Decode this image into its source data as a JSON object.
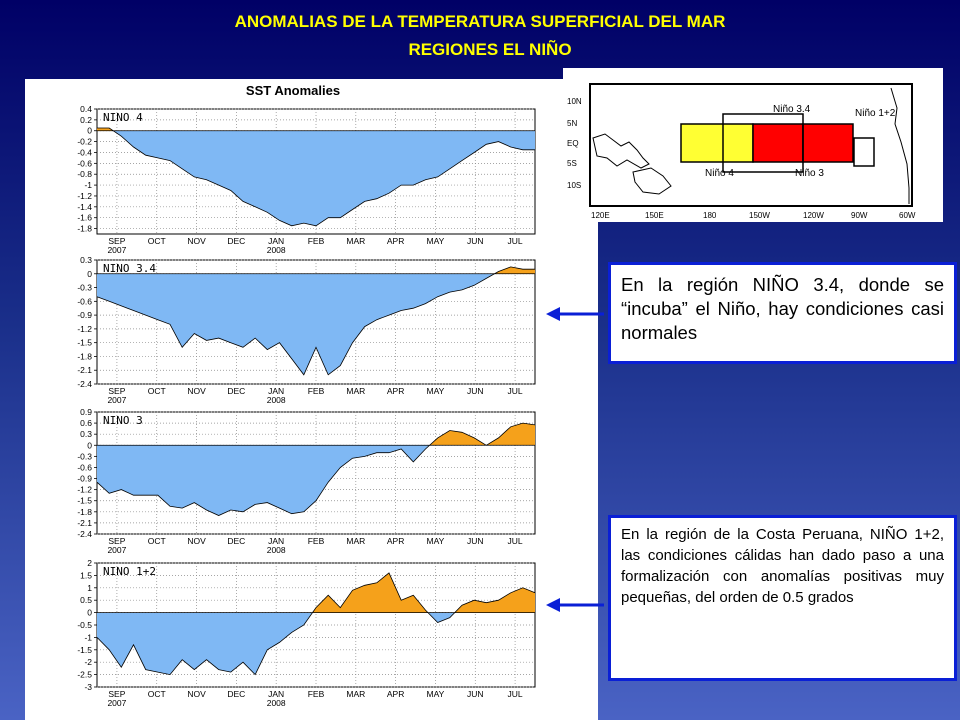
{
  "header": {
    "line1": "ANOMALIAS DE LA TEMPERATURA SUPERFICIAL DEL MAR",
    "line2": "REGIONES EL NIÑO"
  },
  "colors": {
    "negative": "#7fb8f4",
    "positive": "#f5a11b",
    "accent_text": "#ffff00",
    "box_border": "#0a1fd6",
    "map_yellow": "#ffff33",
    "map_red": "#ff0000"
  },
  "panel_title": "SST Anomalies",
  "chart_data": [
    {
      "type": "area",
      "name": "NINO 4",
      "title": "SST Anomalies",
      "x_ticks": [
        "SEP",
        "OCT",
        "NOV",
        "DEC",
        "JAN",
        "FEB",
        "MAR",
        "APR",
        "MAY",
        "JUN",
        "JUL"
      ],
      "x_year_labels": [
        "2007",
        "2008"
      ],
      "ylim": [
        -1.9,
        0.4
      ],
      "yticks": [
        "0.4",
        "0.2",
        "0",
        "-0.2",
        "-0.4",
        "-0.6",
        "-0.8",
        "-1",
        "-1.2",
        "-1.4",
        "-1.6",
        "-1.8"
      ],
      "grid": true,
      "values": [
        0.05,
        0.05,
        -0.1,
        -0.3,
        -0.45,
        -0.5,
        -0.55,
        -0.7,
        -0.85,
        -0.9,
        -1.0,
        -1.1,
        -1.3,
        -1.4,
        -1.5,
        -1.65,
        -1.75,
        -1.7,
        -1.75,
        -1.6,
        -1.6,
        -1.45,
        -1.3,
        -1.25,
        -1.15,
        -1.0,
        -1.0,
        -0.9,
        -0.85,
        -0.7,
        -0.55,
        -0.4,
        -0.25,
        -0.2,
        -0.3,
        -0.35,
        -0.35
      ]
    },
    {
      "type": "area",
      "name": "NINO 3.4",
      "x_ticks": [
        "SEP",
        "OCT",
        "NOV",
        "DEC",
        "JAN",
        "FEB",
        "MAR",
        "APR",
        "MAY",
        "JUN",
        "JUL"
      ],
      "x_year_labels": [
        "2007",
        "2008"
      ],
      "ylim": [
        -2.4,
        0.3
      ],
      "yticks": [
        "0.3",
        "0",
        "-0.3",
        "-0.6",
        "-0.9",
        "-1.2",
        "-1.5",
        "-1.8",
        "-2.1",
        "-2.4"
      ],
      "grid": true,
      "values": [
        -0.5,
        -0.6,
        -0.7,
        -0.8,
        -0.9,
        -1.0,
        -1.1,
        -1.6,
        -1.3,
        -1.45,
        -1.4,
        -1.5,
        -1.6,
        -1.4,
        -1.65,
        -1.5,
        -1.85,
        -2.2,
        -1.6,
        -2.2,
        -2.0,
        -1.5,
        -1.15,
        -1.0,
        -0.9,
        -0.8,
        -0.75,
        -0.65,
        -0.5,
        -0.4,
        -0.35,
        -0.25,
        -0.1,
        0.05,
        0.15,
        0.1,
        0.1
      ]
    },
    {
      "type": "area",
      "name": "NINO 3",
      "x_ticks": [
        "SEP",
        "OCT",
        "NOV",
        "DEC",
        "JAN",
        "FEB",
        "MAR",
        "APR",
        "MAY",
        "JUN",
        "JUL"
      ],
      "x_year_labels": [
        "2007",
        "2008"
      ],
      "ylim": [
        -2.4,
        0.9
      ],
      "yticks": [
        "0.9",
        "0.6",
        "0.3",
        "0",
        "-0.3",
        "-0.6",
        "-0.9",
        "-1.2",
        "-1.5",
        "-1.8",
        "-2.1",
        "-2.4"
      ],
      "grid": true,
      "values": [
        -1.0,
        -1.3,
        -1.2,
        -1.35,
        -1.35,
        -1.35,
        -1.65,
        -1.7,
        -1.55,
        -1.75,
        -1.9,
        -1.75,
        -1.8,
        -1.6,
        -1.55,
        -1.7,
        -1.85,
        -1.8,
        -1.5,
        -1.0,
        -0.6,
        -0.35,
        -0.3,
        -0.2,
        -0.2,
        -0.1,
        -0.45,
        -0.1,
        0.2,
        0.4,
        0.35,
        0.2,
        0.0,
        0.2,
        0.5,
        0.6,
        0.55
      ]
    },
    {
      "type": "area",
      "name": "NINO 1+2",
      "x_ticks": [
        "SEP",
        "OCT",
        "NOV",
        "DEC",
        "JAN",
        "FEB",
        "MAR",
        "APR",
        "MAY",
        "JUN",
        "JUL"
      ],
      "x_year_labels": [
        "2007",
        "2008"
      ],
      "ylim": [
        -3,
        2
      ],
      "yticks": [
        "2",
        "1.5",
        "1",
        "0.5",
        "0",
        "-0.5",
        "-1",
        "-1.5",
        "-2",
        "-2.5",
        "-3"
      ],
      "grid": true,
      "values": [
        -1.0,
        -1.5,
        -2.2,
        -1.3,
        -2.3,
        -2.4,
        -2.5,
        -1.9,
        -2.3,
        -1.9,
        -2.3,
        -2.4,
        -2.0,
        -2.5,
        -1.5,
        -1.2,
        -0.8,
        -0.5,
        0.2,
        0.7,
        0.2,
        0.9,
        1.1,
        1.2,
        1.6,
        0.5,
        0.7,
        0.1,
        -0.4,
        -0.2,
        0.3,
        0.5,
        0.4,
        0.5,
        0.8,
        1.0,
        0.8
      ]
    }
  ],
  "map": {
    "labels": [
      "Niño 3.4",
      "Niño 1+2",
      "Niño 4",
      "Niño 3"
    ],
    "lat_labels": [
      "10N",
      "5N",
      "EQ",
      "5S",
      "10S"
    ],
    "lon_labels": [
      "120E",
      "150E",
      "180",
      "150W",
      "120W",
      "90W",
      "60W"
    ]
  },
  "notes": {
    "note1": "En la región NIÑO 3.4, donde se “incuba” el Niño, hay condiciones casi normales",
    "note2": "En la región de la Costa Peruana, NIÑO 1+2, las condiciones cálidas han dado paso a una formalización con anomalías positivas muy pequeñas, del orden de 0.5 grados"
  }
}
